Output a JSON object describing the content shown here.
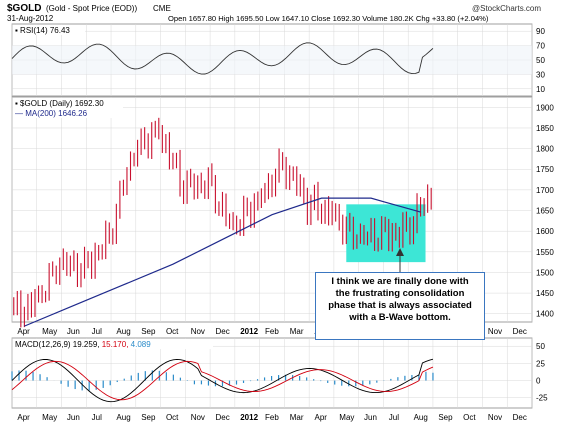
{
  "header": {
    "symbol": "$GOLD",
    "name": "(Gold - Spot Price (EOD))",
    "exchange": "CME",
    "date": "31-Aug-2012",
    "ohlc": "Open 1657.80  High 1695.50  Low 1647.10  Close 1692.30  Volume 180.2K  Chg +33.80 (+2.04%)",
    "chg_marker": "▲",
    "watermark": "@StockCharts.com"
  },
  "panels": {
    "rsi_label": "RSI(14) 76.43",
    "price_label": "$GOLD (Daily) 1692.30",
    "ma_label": "MA(200) 1646.26",
    "macd_label_prefix": "MACD(12,26,9)",
    "macd_value": "19.259,",
    "macd_signal": "15.170,",
    "macd_hist": "4.089"
  },
  "annotation": {
    "lines": [
      "I think we are finally done with",
      "the frustrating consolidation",
      "phase that is always associated",
      "with a B-Wave bottom."
    ]
  },
  "colors": {
    "candle": "#c8102e",
    "ma": "#1f2a8c",
    "box": "#3de6d6",
    "rsi": "#333333",
    "macd": "#000000",
    "signal": "#d2000f",
    "hist": "#2a8bc9",
    "grid": "#d8d8d8"
  },
  "chart_data": {
    "type": "candlestick",
    "title": "$GOLD (Gold - Spot Price (EOD)) CME",
    "x_ticks": [
      "Apr",
      "May",
      "Jun",
      "Jul",
      "Aug",
      "Sep",
      "Oct",
      "Nov",
      "Dec",
      "2012",
      "Feb",
      "Mar",
      "Apr",
      "May",
      "Jun",
      "Jul",
      "Aug",
      "Sep",
      "Oct",
      "Nov",
      "Dec"
    ],
    "price_ticks": [
      1400,
      1450,
      1500,
      1550,
      1600,
      1650,
      1700,
      1750,
      1800,
      1850,
      1900
    ],
    "price_range": [
      1380,
      1925
    ],
    "rsi_ticks": [
      10,
      30,
      50,
      70,
      90
    ],
    "macd_ticks": [
      -25,
      0,
      25,
      50
    ],
    "macd_range": [
      -40,
      62
    ],
    "price_series_monthly_close": [
      {
        "x": "Apr-2011",
        "v": 1430
      },
      {
        "x": "May-2011",
        "v": 1510
      },
      {
        "x": "Jun-2011",
        "v": 1520
      },
      {
        "x": "Jul-2011",
        "v": 1580
      },
      {
        "x": "Aug-2011",
        "v": 1800
      },
      {
        "x": "Sep-2011",
        "v": 1850
      },
      {
        "x": "Oct-2011",
        "v": 1700
      },
      {
        "x": "Nov-2011",
        "v": 1720
      },
      {
        "x": "Dec-2011",
        "v": 1600
      },
      {
        "x": "Jan-2012",
        "v": 1680
      },
      {
        "x": "Feb-2012",
        "v": 1760
      },
      {
        "x": "Mar-2012",
        "v": 1670
      },
      {
        "x": "Apr-2012",
        "v": 1650
      },
      {
        "x": "May-2012",
        "v": 1570
      },
      {
        "x": "Jun-2012",
        "v": 1600
      },
      {
        "x": "Jul-2012",
        "v": 1600
      },
      {
        "x": "Aug-2012",
        "v": 1692.3
      }
    ],
    "ma200": [
      {
        "x": "Apr-2011",
        "v": 1370
      },
      {
        "x": "Jun-2011",
        "v": 1420
      },
      {
        "x": "Aug-2011",
        "v": 1470
      },
      {
        "x": "Oct-2011",
        "v": 1520
      },
      {
        "x": "Dec-2011",
        "v": 1580
      },
      {
        "x": "Feb-2012",
        "v": 1640
      },
      {
        "x": "Apr-2012",
        "v": 1680
      },
      {
        "x": "Jun-2012",
        "v": 1680
      },
      {
        "x": "Aug-2012",
        "v": 1646.26
      }
    ],
    "consolidation_box": {
      "x_start": "May-2012",
      "x_end": "Aug-2012",
      "low": 1525,
      "high": 1665
    }
  }
}
